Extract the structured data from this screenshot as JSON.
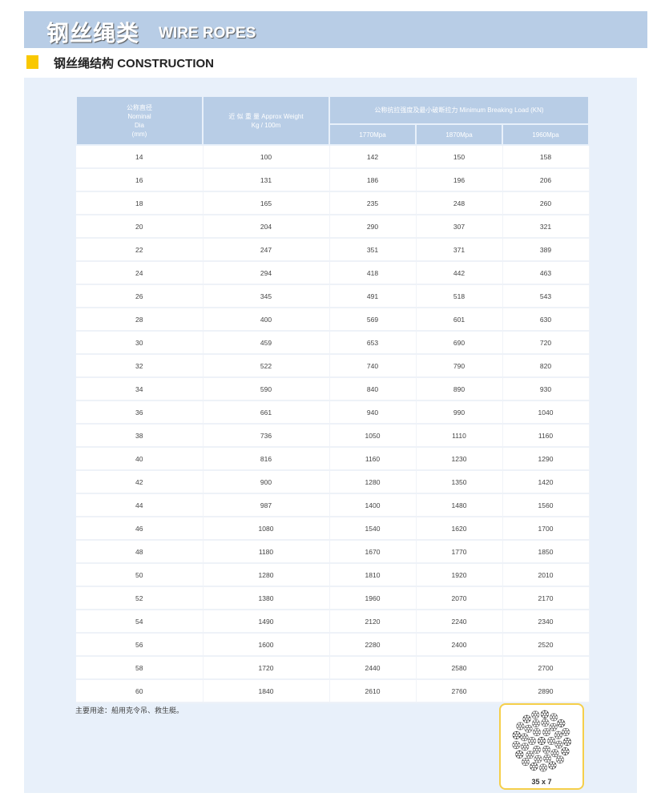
{
  "header": {
    "title_cn": "钢丝绳类",
    "title_en": "WIRE ROPES"
  },
  "section": {
    "title_cn": "钢丝绳结构",
    "title_en": "CONSTRUCTION",
    "marker_color": "#f9c800"
  },
  "table": {
    "headers": {
      "nominal_dia": [
        "公称直径",
        "Nominal",
        "Dia",
        "(mm)"
      ],
      "approx_weight": [
        "近 似 重 量 Approx Weight",
        "Kg / 100m"
      ],
      "breaking_load": "公称抗拉强度及最小破断拉力 Minimum Breaking Load (KN)",
      "grades": [
        "1770Mpa",
        "1870Mpa",
        "1960Mpa"
      ]
    },
    "rows": [
      [
        "14",
        "100",
        "142",
        "150",
        "158"
      ],
      [
        "16",
        "131",
        "186",
        "196",
        "206"
      ],
      [
        "18",
        "165",
        "235",
        "248",
        "260"
      ],
      [
        "20",
        "204",
        "290",
        "307",
        "321"
      ],
      [
        "22",
        "247",
        "351",
        "371",
        "389"
      ],
      [
        "24",
        "294",
        "418",
        "442",
        "463"
      ],
      [
        "26",
        "345",
        "491",
        "518",
        "543"
      ],
      [
        "28",
        "400",
        "569",
        "601",
        "630"
      ],
      [
        "30",
        "459",
        "653",
        "690",
        "720"
      ],
      [
        "32",
        "522",
        "740",
        "790",
        "820"
      ],
      [
        "34",
        "590",
        "840",
        "890",
        "930"
      ],
      [
        "36",
        "661",
        "940",
        "990",
        "1040"
      ],
      [
        "38",
        "736",
        "1050",
        "1110",
        "1160"
      ],
      [
        "40",
        "816",
        "1160",
        "1230",
        "1290"
      ],
      [
        "42",
        "900",
        "1280",
        "1350",
        "1420"
      ],
      [
        "44",
        "987",
        "1400",
        "1480",
        "1560"
      ],
      [
        "46",
        "1080",
        "1540",
        "1620",
        "1700"
      ],
      [
        "48",
        "1180",
        "1670",
        "1770",
        "1850"
      ],
      [
        "50",
        "1280",
        "1810",
        "1920",
        "2010"
      ],
      [
        "52",
        "1380",
        "1960",
        "2070",
        "2170"
      ],
      [
        "54",
        "1490",
        "2120",
        "2240",
        "2340"
      ],
      [
        "56",
        "1600",
        "2280",
        "2400",
        "2520"
      ],
      [
        "58",
        "1720",
        "2440",
        "2580",
        "2700"
      ],
      [
        "60",
        "1840",
        "2610",
        "2760",
        "2890"
      ]
    ]
  },
  "note": "主要用途：船用克令吊、救生艇。",
  "rope_image": {
    "label": "35 x 7"
  },
  "colors": {
    "header_bg": "#b8cde6",
    "panel_bg": "#e8f0fa",
    "frame": "#f5cf4a"
  }
}
